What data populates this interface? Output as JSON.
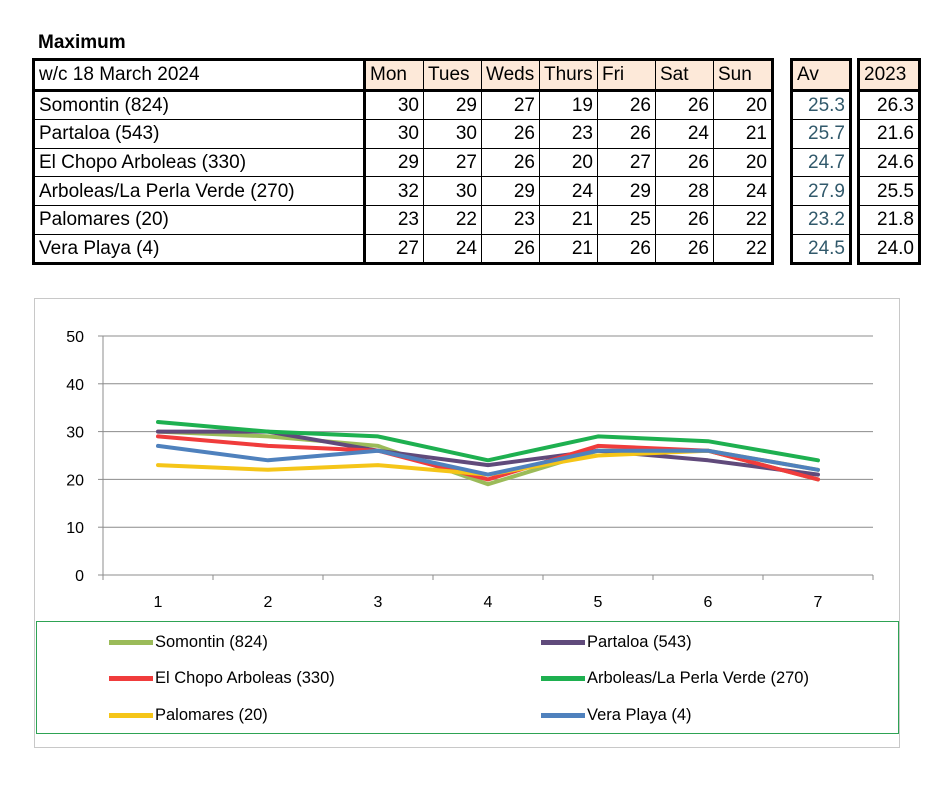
{
  "title": "Maximum",
  "table": {
    "header_label": "w/c  18 March 2024",
    "days": [
      "Mon",
      "Tues",
      "Weds",
      "Thurs",
      "Fri",
      "Sat",
      "Sun"
    ],
    "av_header": "Av",
    "year_header": "2023",
    "rows": [
      {
        "name": "Somontin (824)",
        "values": [
          "30",
          "29",
          "27",
          "19",
          "26",
          "26",
          "20"
        ],
        "av": "25.3",
        "year": "26.3"
      },
      {
        "name": "Partaloa (543)",
        "values": [
          "30",
          "30",
          "26",
          "23",
          "26",
          "24",
          "21"
        ],
        "av": "25.7",
        "year": "21.6"
      },
      {
        "name": "El Chopo  Arboleas (330)",
        "values": [
          "29",
          "27",
          "26",
          "20",
          "27",
          "26",
          "20"
        ],
        "av": "24.7",
        "year": "24.6"
      },
      {
        "name": "Arboleas/La Perla Verde (270)",
        "values": [
          "32",
          "30",
          "29",
          "24",
          "29",
          "28",
          "24"
        ],
        "av": "27.9",
        "year": "25.5"
      },
      {
        "name": "Palomares (20)",
        "values": [
          "23",
          "22",
          "23",
          "21",
          "25",
          "26",
          "22"
        ],
        "av": "23.2",
        "year": "21.8"
      },
      {
        "name": "Vera Playa (4)",
        "values": [
          "27",
          "24",
          "26",
          "21",
          "26",
          "26",
          "22"
        ],
        "av": "24.5",
        "year": "24.0"
      }
    ]
  },
  "chart_data": {
    "type": "line",
    "x": [
      1,
      2,
      3,
      4,
      5,
      6,
      7
    ],
    "x_tick_labels": [
      "1",
      "2",
      "3",
      "4",
      "5",
      "6",
      "7"
    ],
    "y_tick_labels": [
      "0",
      "10",
      "20",
      "30",
      "40",
      "50"
    ],
    "ylim": [
      0,
      50
    ],
    "grid": "horizontal",
    "legend_position": "bottom",
    "series": [
      {
        "name": "Somontin (824)",
        "color": "#9bbb59",
        "values": [
          30,
          29,
          27,
          19,
          26,
          26,
          20
        ]
      },
      {
        "name": "Partaloa (543)",
        "color": "#604a7b",
        "values": [
          30,
          30,
          26,
          23,
          26,
          24,
          21
        ]
      },
      {
        "name": "El Chopo  Arboleas (330)",
        "color": "#f03c3c",
        "values": [
          29,
          27,
          26,
          20,
          27,
          26,
          20
        ]
      },
      {
        "name": "Arboleas/La Perla Verde (270)",
        "color": "#1eb050",
        "values": [
          32,
          30,
          29,
          24,
          29,
          28,
          24
        ]
      },
      {
        "name": "Palomares (20)",
        "color": "#f5c518",
        "values": [
          23,
          22,
          23,
          21,
          25,
          26,
          22
        ]
      },
      {
        "name": "Vera Playa (4)",
        "color": "#4f81bd",
        "values": [
          27,
          24,
          26,
          21,
          26,
          26,
          22
        ]
      }
    ]
  }
}
